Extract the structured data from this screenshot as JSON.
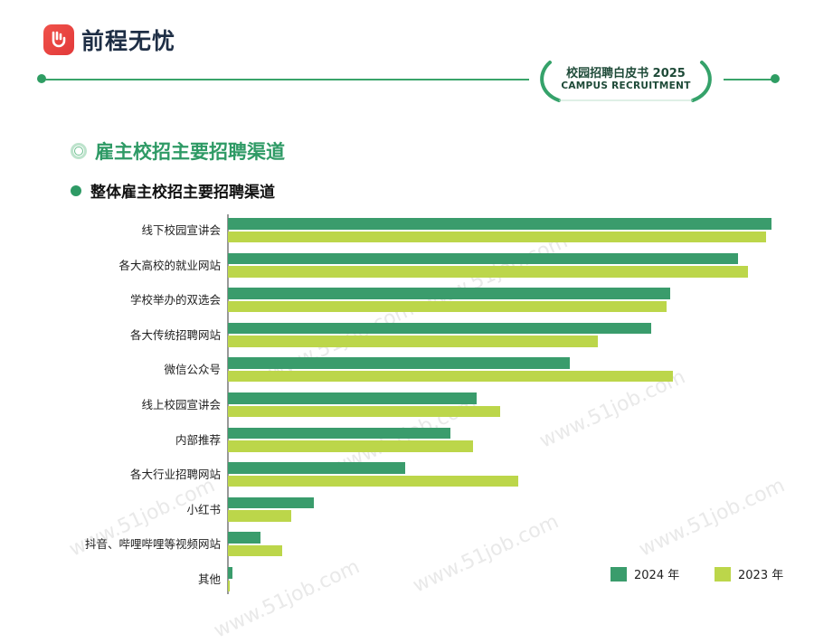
{
  "header": {
    "brand": "前程无忧",
    "badge_line1": "校园招聘白皮书 2025",
    "badge_line2": "CAMPUS RECRUITMENT"
  },
  "section_title": "雇主校招主要招聘渠道",
  "watermark": "www.51job.com",
  "chart_data": {
    "type": "bar",
    "orientation": "horizontal",
    "title": "整体雇主校招主要招聘渠道",
    "categories": [
      "线下校园宣讲会",
      "各大高校的就业网站",
      "学校举办的双选会",
      "各大传统招聘网站",
      "微信公众号",
      "线上校园宣讲会",
      "内部推荐",
      "各大行业招聘网站",
      "小红书",
      "抖音、哔哩哔哩等视频网站",
      "其他"
    ],
    "series": [
      {
        "name": "2024 年",
        "color": "#3a9c6c",
        "values": [
          98.6,
          92.4,
          80.2,
          76.7,
          62.0,
          45.1,
          40.3,
          32.2,
          15.6,
          5.9,
          0.9
        ]
      },
      {
        "name": "2023 年",
        "color": "#bcd64a",
        "values": [
          97.6,
          94.2,
          79.5,
          67.1,
          80.7,
          49.4,
          44.4,
          52.7,
          11.4,
          9.9,
          0.3
        ]
      }
    ],
    "xlim": [
      0,
      100
    ],
    "grid": false,
    "legend_position": "bottom-right"
  }
}
